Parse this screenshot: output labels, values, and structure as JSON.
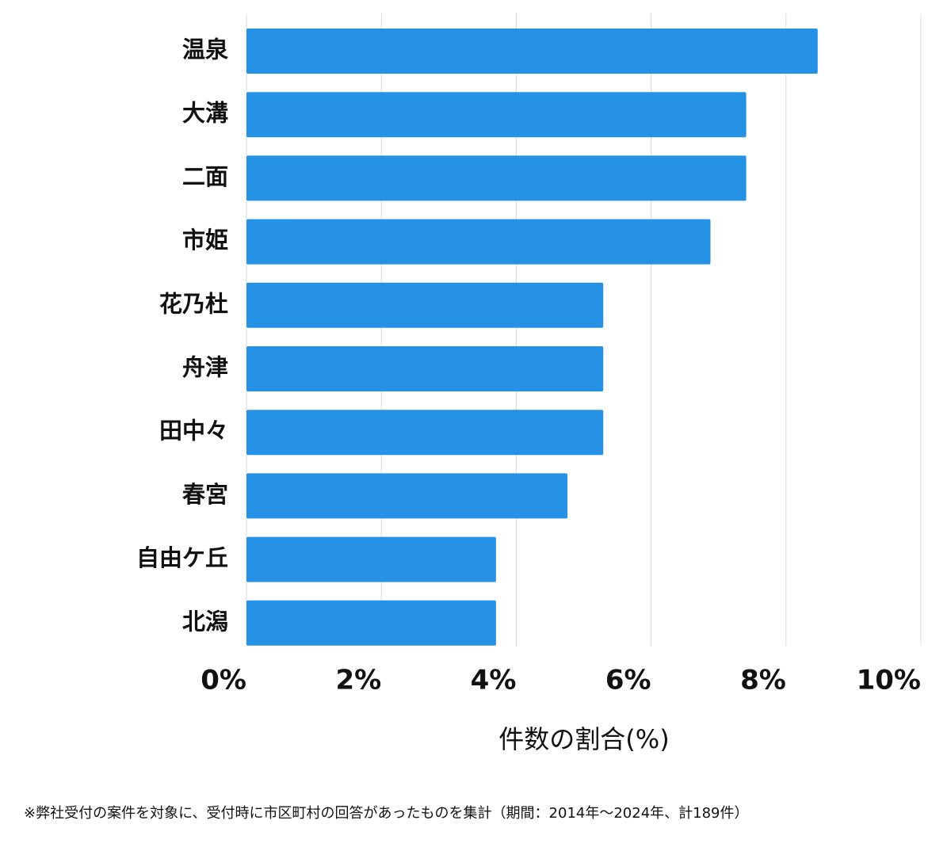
{
  "chart_data": {
    "type": "bar",
    "orientation": "horizontal",
    "categories": [
      "温泉",
      "大溝",
      "二面",
      "市姫",
      "花乃杜",
      "舟津",
      "田中々",
      "春宮",
      "自由ケ丘",
      "北潟"
    ],
    "values": [
      8.47,
      7.41,
      7.41,
      6.88,
      5.29,
      5.29,
      5.29,
      4.76,
      3.7,
      3.7
    ],
    "color": "#2592e6",
    "xlim": [
      0,
      10
    ],
    "xticks": [
      {
        "value": 0,
        "label": "0%"
      },
      {
        "value": 2,
        "label": "2%"
      },
      {
        "value": 4,
        "label": "4%"
      },
      {
        "value": 6,
        "label": "6%"
      },
      {
        "value": 8,
        "label": "8%"
      },
      {
        "value": 10,
        "label": "10%"
      }
    ],
    "grid": true,
    "x_label": "件数の割合(%)",
    "footnote": "※弊社受付の案件を対象に、受付時に市区町村の回答があったものを集計（期間：2014年～2024年、計189件）"
  }
}
